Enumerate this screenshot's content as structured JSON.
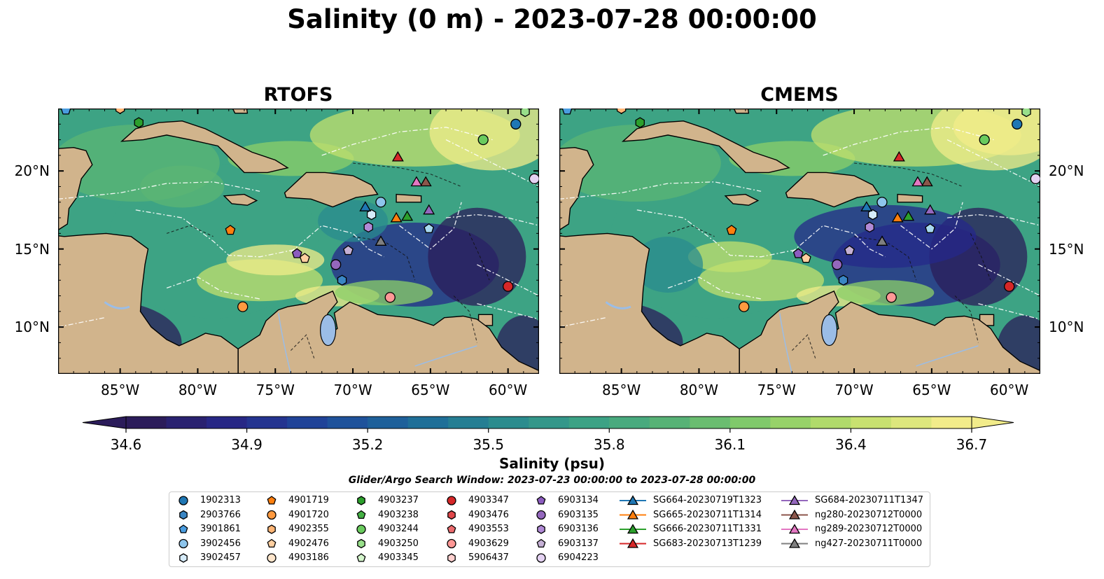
{
  "title": "Salinity (0 m) - 2023-07-28 00:00:00",
  "panels": [
    {
      "title": "RTOFS"
    },
    {
      "title": "CMEMS"
    }
  ],
  "map_extent": {
    "lon": [
      -89,
      -58
    ],
    "lat": [
      7,
      24
    ]
  },
  "lat_ticks": [
    "20°N",
    "15°N",
    "10°N"
  ],
  "lon_ticks": [
    "85°W",
    "80°W",
    "75°W",
    "70°W",
    "65°W",
    "60°W"
  ],
  "colorbar": {
    "label": "Salinity (psu)",
    "ticks": [
      "34.6",
      "34.9",
      "35.2",
      "35.5",
      "35.8",
      "36.1",
      "36.4",
      "36.7"
    ],
    "range": [
      34.6,
      36.7
    ],
    "colormap": [
      "#2b1c5a",
      "#26288a",
      "#1f4a9b",
      "#1d6a9a",
      "#2a8b8f",
      "#3da384",
      "#5bb574",
      "#8ccf68",
      "#c3e06d",
      "#f2ec8a"
    ]
  },
  "search_window": "Glider/Argo Search Window: 2023-07-23 00:00:00 to 2023-07-28 00:00:00",
  "colors": {
    "land": "#d1b48c",
    "lake": "#9bbde6",
    "ocean_deep": "#2b1c5a"
  },
  "legend": {
    "columns": [
      [
        {
          "label": "1902313",
          "marker": "circle",
          "color": "#1f77b4"
        },
        {
          "label": "2903766",
          "marker": "hexagon",
          "color": "#3a86c4"
        },
        {
          "label": "3901861",
          "marker": "pentagon",
          "color": "#4a9de0"
        },
        {
          "label": "3902456",
          "marker": "circle",
          "color": "#8ec5ec"
        },
        {
          "label": "3902457",
          "marker": "hexagon",
          "color": "#d6ecfa"
        }
      ],
      [
        {
          "label": "4901719",
          "marker": "pentagon",
          "color": "#ff7f0e"
        },
        {
          "label": "4901720",
          "marker": "circle",
          "color": "#ff9a40"
        },
        {
          "label": "4902355",
          "marker": "hexagon",
          "color": "#ffb676"
        },
        {
          "label": "4902476",
          "marker": "pentagon",
          "color": "#ffcfa0"
        },
        {
          "label": "4903186",
          "marker": "circle",
          "color": "#ffe6cc"
        }
      ],
      [
        {
          "label": "4903237",
          "marker": "hexagon",
          "color": "#2ca02c"
        },
        {
          "label": "4903238",
          "marker": "pentagon",
          "color": "#44b044"
        },
        {
          "label": "4903244",
          "marker": "circle",
          "color": "#6acb5e"
        },
        {
          "label": "4903250",
          "marker": "hexagon",
          "color": "#98df8a"
        },
        {
          "label": "4903345",
          "marker": "pentagon",
          "color": "#d4f5cc"
        }
      ],
      [
        {
          "label": "4903347",
          "marker": "circle",
          "color": "#d62728"
        },
        {
          "label": "4903476",
          "marker": "hexagon",
          "color": "#e0474a"
        },
        {
          "label": "4903553",
          "marker": "pentagon",
          "color": "#ec6b6e"
        },
        {
          "label": "4903629",
          "marker": "circle",
          "color": "#ff9896"
        },
        {
          "label": "5906437",
          "marker": "hexagon",
          "color": "#ffd0cf"
        }
      ],
      [
        {
          "label": "6903134",
          "marker": "pentagon",
          "color": "#8c5cbf"
        },
        {
          "label": "6903135",
          "marker": "circle",
          "color": "#9467bd"
        },
        {
          "label": "6903136",
          "marker": "hexagon",
          "color": "#b18ad6"
        },
        {
          "label": "6903137",
          "marker": "pentagon",
          "color": "#c5b0d5"
        },
        {
          "label": "6904223",
          "marker": "circle",
          "color": "#e4d2f2"
        }
      ],
      [
        {
          "label": "SG664-20230719T1323",
          "marker": "triangle",
          "color": "#1f77b4"
        },
        {
          "label": "SG665-20230711T1314",
          "marker": "triangle",
          "color": "#ff7f0e"
        },
        {
          "label": "SG666-20230711T1331",
          "marker": "triangle",
          "color": "#2ca02c"
        },
        {
          "label": "SG683-20230713T1239",
          "marker": "triangle",
          "color": "#d62728"
        }
      ],
      [
        {
          "label": "SG684-20230711T1347",
          "marker": "triangle",
          "color": "#9467bd"
        },
        {
          "label": "ng280-20230712T0000",
          "marker": "triangle",
          "color": "#8c564b"
        },
        {
          "label": "ng289-20230712T0000",
          "marker": "triangle",
          "color": "#e377c2"
        },
        {
          "label": "ng427-20230711T0000",
          "marker": "triangle",
          "color": "#7f7f7f"
        }
      ]
    ]
  },
  "platforms": [
    {
      "id": "1902313",
      "lon": -59.5,
      "lat": 23.0,
      "marker": "circle",
      "color": "#1f77b4"
    },
    {
      "id": "2903766",
      "lon": -70.7,
      "lat": 13.0,
      "marker": "hexagon",
      "color": "#3a86c4"
    },
    {
      "id": "3901861",
      "lon": -88.5,
      "lat": 23.9,
      "marker": "pentagon",
      "color": "#4a9de0"
    },
    {
      "id": "3902456",
      "lon": -68.2,
      "lat": 18.0,
      "marker": "circle",
      "color": "#8ec5ec"
    },
    {
      "id": "3902457",
      "lon": -68.8,
      "lat": 17.2,
      "marker": "hexagon",
      "color": "#d6ecfa"
    },
    {
      "id": "4901719",
      "lon": -77.9,
      "lat": 16.2,
      "marker": "pentagon",
      "color": "#ff7f0e"
    },
    {
      "id": "4901720",
      "lon": -77.1,
      "lat": 11.3,
      "marker": "circle",
      "color": "#ff9a40"
    },
    {
      "id": "4902355",
      "lon": -85.0,
      "lat": 24.0,
      "marker": "hexagon",
      "color": "#ffb676"
    },
    {
      "id": "4902476",
      "lon": -73.1,
      "lat": 14.4,
      "marker": "pentagon",
      "color": "#ffcfa0"
    },
    {
      "id": "4903237",
      "lon": -83.8,
      "lat": 23.1,
      "marker": "hexagon",
      "color": "#2ca02c"
    },
    {
      "id": "4903244",
      "lon": -61.6,
      "lat": 22.0,
      "marker": "circle",
      "color": "#6acb5e"
    },
    {
      "id": "4903250",
      "lon": -58.9,
      "lat": 23.8,
      "marker": "hexagon",
      "color": "#98df8a"
    },
    {
      "id": "4903347",
      "lon": -60.0,
      "lat": 12.6,
      "marker": "circle",
      "color": "#d62728"
    },
    {
      "id": "4903629",
      "lon": -67.6,
      "lat": 11.9,
      "marker": "circle",
      "color": "#ff9896"
    },
    {
      "id": "6903134",
      "lon": -73.6,
      "lat": 14.7,
      "marker": "pentagon",
      "color": "#8c5cbf"
    },
    {
      "id": "6903135",
      "lon": -71.1,
      "lat": 14.0,
      "marker": "circle",
      "color": "#9467bd"
    },
    {
      "id": "6903136",
      "lon": -69.0,
      "lat": 16.4,
      "marker": "hexagon",
      "color": "#b18ad6"
    },
    {
      "id": "6903137",
      "lon": -70.3,
      "lat": 14.9,
      "marker": "pentagon",
      "color": "#c5b0d5"
    },
    {
      "id": "6904223",
      "lon": -58.3,
      "lat": 19.5,
      "marker": "circle",
      "color": "#e4d2f2"
    },
    {
      "id": "4903238-a",
      "lon": -65.1,
      "lat": 16.3,
      "marker": "pentagon",
      "color": "#a8d8f0"
    },
    {
      "id": "SG664-20230719T1323",
      "lon": -69.2,
      "lat": 17.7,
      "marker": "triangle",
      "color": "#1f77b4"
    },
    {
      "id": "SG665-20230711T1314",
      "lon": -67.2,
      "lat": 17.0,
      "marker": "triangle",
      "color": "#ff7f0e"
    },
    {
      "id": "SG666-20230711T1331",
      "lon": -66.5,
      "lat": 17.1,
      "marker": "triangle",
      "color": "#2ca02c"
    },
    {
      "id": "SG683-20230713T1239",
      "lon": -67.1,
      "lat": 20.9,
      "marker": "triangle",
      "color": "#d62728"
    },
    {
      "id": "SG684-20230711T1347",
      "lon": -65.1,
      "lat": 17.5,
      "marker": "triangle",
      "color": "#9467bd"
    },
    {
      "id": "ng280-20230712T0000",
      "lon": -65.3,
      "lat": 19.3,
      "marker": "triangle",
      "color": "#8c564b"
    },
    {
      "id": "ng289-20230712T0000",
      "lon": -65.9,
      "lat": 19.3,
      "marker": "triangle",
      "color": "#e377c2"
    },
    {
      "id": "ng427-20230711T0000",
      "lon": -68.2,
      "lat": 15.5,
      "marker": "triangle",
      "color": "#7f7f7f"
    }
  ]
}
